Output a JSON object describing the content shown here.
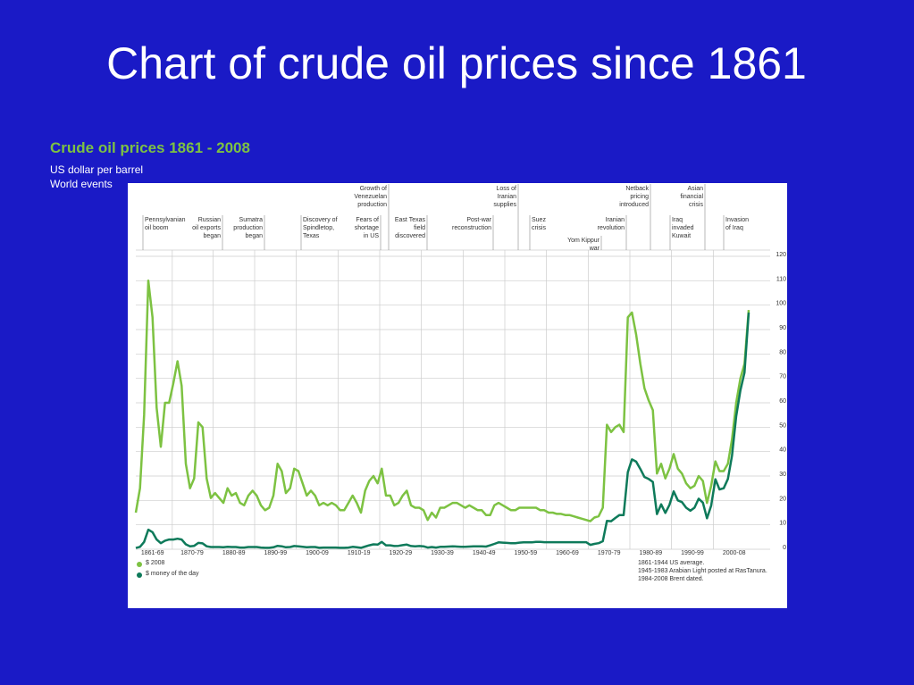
{
  "title": "Chart of crude oil prices since 1861",
  "chart_data": {
    "type": "line",
    "heading": "Crude oil prices 1861 - 2008",
    "subtitle": "US dollar per barrel",
    "events_label": "World events",
    "x": [
      1861,
      1862,
      1863,
      1864,
      1865,
      1866,
      1867,
      1868,
      1869,
      1870,
      1871,
      1872,
      1873,
      1874,
      1875,
      1876,
      1877,
      1878,
      1879,
      1880,
      1881,
      1882,
      1883,
      1884,
      1885,
      1886,
      1887,
      1888,
      1889,
      1890,
      1891,
      1892,
      1893,
      1894,
      1895,
      1896,
      1897,
      1898,
      1899,
      1900,
      1901,
      1902,
      1903,
      1904,
      1905,
      1906,
      1907,
      1908,
      1909,
      1910,
      1911,
      1912,
      1913,
      1914,
      1915,
      1916,
      1917,
      1918,
      1919,
      1920,
      1921,
      1922,
      1923,
      1924,
      1925,
      1926,
      1927,
      1928,
      1929,
      1930,
      1931,
      1932,
      1933,
      1934,
      1935,
      1936,
      1937,
      1938,
      1939,
      1940,
      1941,
      1942,
      1943,
      1944,
      1945,
      1946,
      1947,
      1948,
      1949,
      1950,
      1951,
      1952,
      1953,
      1954,
      1955,
      1956,
      1957,
      1958,
      1959,
      1960,
      1961,
      1962,
      1963,
      1964,
      1965,
      1966,
      1967,
      1968,
      1969,
      1970,
      1971,
      1972,
      1973,
      1974,
      1975,
      1976,
      1977,
      1978,
      1979,
      1980,
      1981,
      1982,
      1983,
      1984,
      1985,
      1986,
      1987,
      1988,
      1989,
      1990,
      1991,
      1992,
      1993,
      1994,
      1995,
      1996,
      1997,
      1998,
      1999,
      2000,
      2001,
      2002,
      2003,
      2004,
      2005,
      2006,
      2007,
      2008
    ],
    "series": [
      {
        "name": "$ 2008",
        "color": "#7dc242",
        "values": [
          15,
          25,
          55,
          110,
          95,
          58,
          42,
          60,
          60,
          68,
          77,
          67,
          35,
          25,
          29,
          52,
          50,
          29,
          21,
          23,
          21,
          19,
          25,
          22,
          23,
          19,
          18,
          22,
          24,
          22,
          18,
          16,
          17,
          22,
          35,
          32,
          23,
          25,
          33,
          32,
          27,
          22,
          24,
          22,
          18,
          19,
          18,
          19,
          18,
          16,
          16,
          19,
          22,
          19,
          15,
          24,
          28,
          30,
          27,
          33,
          22,
          22,
          18,
          19,
          22,
          24,
          18,
          17,
          17,
          16,
          12,
          15,
          13,
          17,
          17,
          18,
          19,
          19,
          18,
          17,
          18,
          17,
          16,
          16,
          14,
          14,
          18,
          19,
          18,
          17,
          16,
          16,
          17,
          17,
          17,
          17,
          17,
          16,
          16,
          15,
          15,
          14.5,
          14.5,
          14,
          14,
          13.5,
          13,
          12.5,
          12,
          11.5,
          13,
          13.5,
          17,
          51,
          48,
          50,
          51,
          48,
          95,
          97,
          88,
          76,
          66,
          61,
          57,
          31,
          35,
          29,
          33,
          39,
          33,
          31,
          27,
          25,
          26,
          30,
          28,
          19,
          26,
          36,
          32,
          32,
          35,
          45,
          60,
          70,
          76,
          98
        ]
      },
      {
        "name": "$ money of the day",
        "color": "#0e7a5a",
        "values": [
          0.5,
          1,
          3,
          8,
          7,
          4,
          2.5,
          3.5,
          4,
          4,
          4.3,
          4,
          2,
          1.2,
          1.4,
          2.6,
          2.4,
          1.2,
          0.9,
          0.9,
          0.9,
          0.8,
          1,
          0.9,
          0.9,
          0.7,
          0.7,
          0.9,
          0.9,
          0.9,
          0.7,
          0.6,
          0.6,
          0.8,
          1.4,
          1.2,
          0.8,
          0.9,
          1.3,
          1.2,
          1,
          0.8,
          0.9,
          0.9,
          0.6,
          0.7,
          0.7,
          0.7,
          0.7,
          0.6,
          0.6,
          0.7,
          1,
          0.8,
          0.6,
          1.1,
          1.6,
          2,
          1.9,
          3,
          1.6,
          1.6,
          1.3,
          1.4,
          1.7,
          1.9,
          1.3,
          1.2,
          1.3,
          1.2,
          0.7,
          0.9,
          0.7,
          1,
          1,
          1.1,
          1.2,
          1.1,
          1,
          1,
          1.1,
          1.2,
          1.2,
          1.2,
          1.1,
          1.6,
          2.2,
          2.8,
          2.7,
          2.6,
          2.5,
          2.5,
          2.7,
          2.8,
          2.8,
          2.8,
          3,
          3,
          2.9,
          2.9,
          2.9,
          2.9,
          2.9,
          2.9,
          2.9,
          2.9,
          2.9,
          2.9,
          2.9,
          1.8,
          2.2,
          2.5,
          3.3,
          11.6,
          11.5,
          12.8,
          14,
          14,
          31.6,
          36.8,
          35.9,
          32.9,
          29.6,
          28.8,
          27.6,
          14.4,
          18.4,
          14.9,
          18.2,
          23.7,
          20,
          19.3,
          17,
          15.8,
          17,
          20.7,
          19.1,
          12.7,
          17.9,
          28.7,
          24.5,
          25,
          28.8,
          38.3,
          54.5,
          65.1,
          72.4,
          97
        ]
      }
    ],
    "xlim": [
      1861,
      2008
    ],
    "xticks": [
      {
        "value": 1865,
        "label": "1861-69"
      },
      {
        "value": 1874.5,
        "label": "1870-79"
      },
      {
        "value": 1884.5,
        "label": "1880-89"
      },
      {
        "value": 1894.5,
        "label": "1890-99"
      },
      {
        "value": 1904.5,
        "label": "1900-09"
      },
      {
        "value": 1914.5,
        "label": "1910-19"
      },
      {
        "value": 1924.5,
        "label": "1920-29"
      },
      {
        "value": 1934.5,
        "label": "1930-39"
      },
      {
        "value": 1944.5,
        "label": "1940-49"
      },
      {
        "value": 1954.5,
        "label": "1950-59"
      },
      {
        "value": 1964.5,
        "label": "1960-69"
      },
      {
        "value": 1974.5,
        "label": "1970-79"
      },
      {
        "value": 1984.5,
        "label": "1980-89"
      },
      {
        "value": 1994.5,
        "label": "1990-99"
      },
      {
        "value": 2004.5,
        "label": "2000-08"
      }
    ],
    "ylim": [
      0,
      120
    ],
    "yticks": [
      0,
      10,
      20,
      30,
      40,
      50,
      60,
      70,
      80,
      90,
      100,
      110,
      120
    ],
    "grid": true,
    "annotations": [
      {
        "lines": [
          "Growth of",
          "Venezuelan",
          "production"
        ]
      },
      {
        "lines": [
          "Loss of",
          "Iranian",
          "supplies"
        ]
      },
      {
        "lines": [
          "Netback",
          "pricing",
          "introduced"
        ]
      },
      {
        "lines": [
          "Asian",
          "financial",
          "crisis"
        ]
      },
      {
        "lines": [
          "Pennsylvanian",
          "oil boom"
        ]
      },
      {
        "lines": [
          "Russian",
          "oil exports",
          "began"
        ]
      },
      {
        "lines": [
          "Sumatra",
          "production",
          "began"
        ]
      },
      {
        "lines": [
          "Discovery of",
          "Spindletop,",
          "Texas"
        ]
      },
      {
        "lines": [
          "Fears of",
          "shortage",
          "in US"
        ]
      },
      {
        "lines": [
          "East Texas",
          "field",
          "discovered"
        ]
      },
      {
        "lines": [
          "Post-war",
          "reconstruction"
        ]
      },
      {
        "lines": [
          "Suez",
          "crisis"
        ]
      },
      {
        "lines": [
          "Iranian",
          "revolution"
        ]
      },
      {
        "lines": [
          "Iraq",
          "invaded",
          "Kuwait"
        ]
      },
      {
        "lines": [
          "Invasion",
          "of Iraq"
        ]
      },
      {
        "lines": [
          "Yom Kippur",
          "war"
        ]
      }
    ],
    "notes": [
      "1861-1944 US average.",
      "1945-1983 Arabian Light posted at RasTanura.",
      "1984-2008 Brent dated."
    ]
  }
}
